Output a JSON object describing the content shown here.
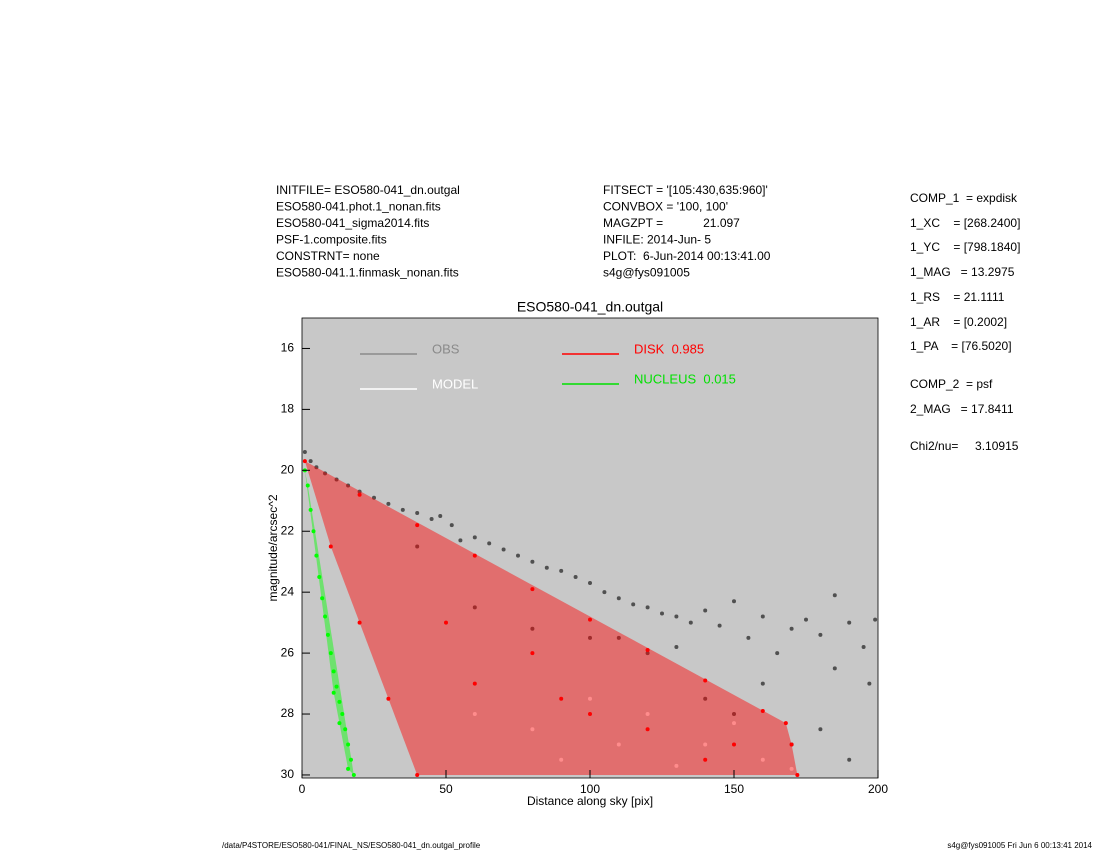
{
  "left_info": [
    "INITFILE= ESO580-041_dn.outgal",
    "ESO580-041.phot.1_nonan.fits",
    "ESO580-041_sigma2014.fits",
    "PSF-1.composite.fits",
    "CONSTRNT= none",
    "ESO580-041.1.finmask_nonan.fits"
  ],
  "mid_info": [
    "FITSECT = '[105:430,635:960]'",
    "CONVBOX = '100, 100'",
    "MAGZPT =            21.097",
    "INFILE: 2014-Jun- 5",
    "PLOT:  6-Jun-2014 00:13:41.00",
    "s4g@fys091005"
  ],
  "params": [
    "COMP_1  = expdisk",
    "1_XC    = [268.2400]",
    "1_YC    = [798.1840]",
    "1_MAG   = 13.2975",
    "1_RS    = 21.1111",
    "1_AR    = [0.2002]",
    "1_PA    = [76.5020]",
    "COMP_2  = psf",
    "2_MAG   = 17.8411",
    "Chi2/nu=     3.10915"
  ],
  "footer": {
    "left": "/data/P4STORE/ESO580-041/FINAL_NS/ESO580-041_dn.outgal_profile",
    "right": "s4g@fys091005  Fri Jun  6 00:13:41 2014"
  },
  "chart_data": {
    "type": "scatter",
    "title": "ESO580-041_dn.outgal",
    "x_label": "Distance along sky [pix]",
    "y_label": "magnitude/arcsec^2",
    "xlim": [
      0,
      200
    ],
    "xticks": [
      0,
      50,
      100,
      150,
      200
    ],
    "ylim": [
      15,
      30.1
    ],
    "yticks": [
      16,
      18,
      20,
      22,
      24,
      26,
      28,
      30
    ],
    "y_inverted": true,
    "grid": false,
    "background": "#c8c8c8",
    "series": [
      {
        "name": "OBS",
        "color": "#505050",
        "legend_color": "#8a8a8a",
        "fill_region": false,
        "x": [
          1,
          3,
          5,
          8,
          12,
          16,
          20,
          25,
          30,
          35,
          40,
          45,
          48,
          52,
          55,
          60,
          65,
          70,
          75,
          80,
          85,
          90,
          95,
          100,
          105,
          110,
          115,
          120,
          125,
          130,
          135,
          140,
          145,
          150,
          155,
          160,
          165,
          170,
          175,
          180,
          185,
          190,
          195,
          199,
          120,
          140,
          160,
          180,
          190,
          150,
          170,
          130,
          110,
          185,
          197,
          60,
          80,
          100,
          40
        ],
        "values": [
          19.4,
          19.7,
          19.9,
          20.1,
          20.3,
          20.5,
          20.7,
          20.9,
          21.1,
          21.3,
          21.4,
          21.6,
          21.5,
          21.8,
          22.3,
          22.2,
          22.4,
          22.6,
          22.8,
          23.0,
          23.2,
          23.3,
          23.5,
          23.7,
          24.0,
          24.2,
          24.4,
          24.5,
          24.7,
          24.8,
          25.0,
          24.6,
          25.1,
          24.3,
          25.5,
          24.8,
          26.0,
          25.2,
          24.9,
          25.4,
          26.5,
          25.0,
          25.8,
          24.9,
          26.0,
          27.5,
          27.0,
          28.5,
          29.5,
          28.0,
          29.0,
          25.8,
          25.5,
          24.1,
          27.0,
          24.5,
          25.2,
          25.5,
          22.5
        ]
      },
      {
        "name": "MODEL",
        "color": "#ffffff",
        "legend_color": "#ffffff",
        "fill_region": false,
        "x": [
          60,
          80,
          90,
          100,
          110,
          120,
          130,
          140,
          150,
          160,
          170
        ],
        "values": [
          28.0,
          28.5,
          29.5,
          27.5,
          29.0,
          28.0,
          29.7,
          29.0,
          28.3,
          29.5,
          29.8
        ]
      },
      {
        "name": "DISK  0.985",
        "color": "#ff0000",
        "legend_color": "#ff0000",
        "fill_region": true,
        "x": [
          1,
          20,
          40,
          60,
          80,
          100,
          120,
          140,
          160,
          168,
          172,
          40,
          10,
          20,
          30,
          60,
          80,
          100,
          120,
          140,
          50,
          90,
          150,
          170
        ],
        "values": [
          19.7,
          20.8,
          21.8,
          22.8,
          23.9,
          24.9,
          25.9,
          26.9,
          27.9,
          28.3,
          30.0,
          30.0,
          22.5,
          25.0,
          27.5,
          27.0,
          26.0,
          28.0,
          28.5,
          29.5,
          25.0,
          27.5,
          29.0,
          29.0
        ]
      },
      {
        "name": "NUCLEUS  0.015",
        "color": "#00ff00",
        "legend_color": "#00e000",
        "fill_region": true,
        "x": [
          1,
          2,
          3,
          4,
          5,
          6,
          7,
          8,
          9,
          10,
          11,
          12,
          13,
          14,
          15,
          16,
          17,
          18,
          13,
          16,
          11
        ],
        "values": [
          20.0,
          20.5,
          21.3,
          22.0,
          22.8,
          23.5,
          24.2,
          24.8,
          25.4,
          26.0,
          26.6,
          27.1,
          27.6,
          28.0,
          28.5,
          29.0,
          29.5,
          30.0,
          28.3,
          29.8,
          27.3
        ]
      }
    ]
  }
}
